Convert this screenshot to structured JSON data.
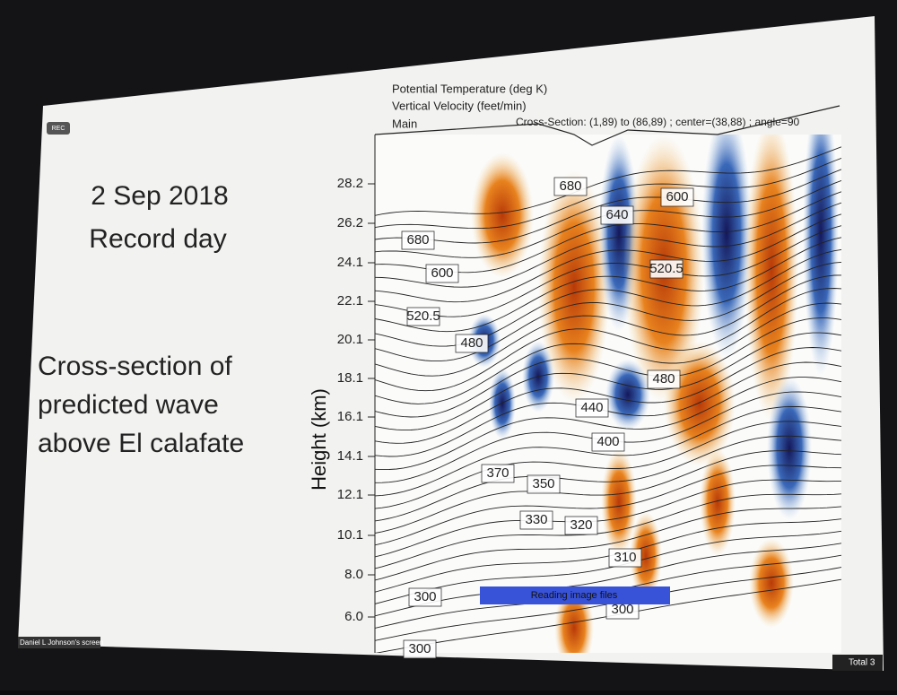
{
  "recording": {
    "label": "REC"
  },
  "slide": {
    "date": "2 Sep 2018",
    "subtitle": "Record day",
    "description": [
      "Cross-section of",
      "predicted wave",
      "above El calafate"
    ]
  },
  "plot": {
    "header": [
      "Potential Temperature  (deg K)",
      "Vertical Velocity   (feet/min)",
      "Main"
    ],
    "cross_section": "Cross-Section: (1,89) to (86,89) ; center=(38,88) ; angle=90",
    "y_axis_label": "Height (km)",
    "y_ticks": [
      "28.2",
      "26.2",
      "24.1",
      "22.1",
      "20.1",
      "18.1",
      "16.1",
      "14.1",
      "12.1",
      "10.1",
      "8.0",
      "6.0"
    ],
    "contour_labels": [
      "680",
      "640",
      "600",
      "680",
      "600",
      "520.5",
      "520.5",
      "480",
      "480",
      "440",
      "400",
      "370",
      "350",
      "330",
      "320",
      "310",
      "300",
      "300",
      "300"
    ]
  },
  "status": "Reading image files",
  "footer": {
    "screen_owner": "Daniel L Johnson's screen",
    "participants": "Total 3"
  }
}
